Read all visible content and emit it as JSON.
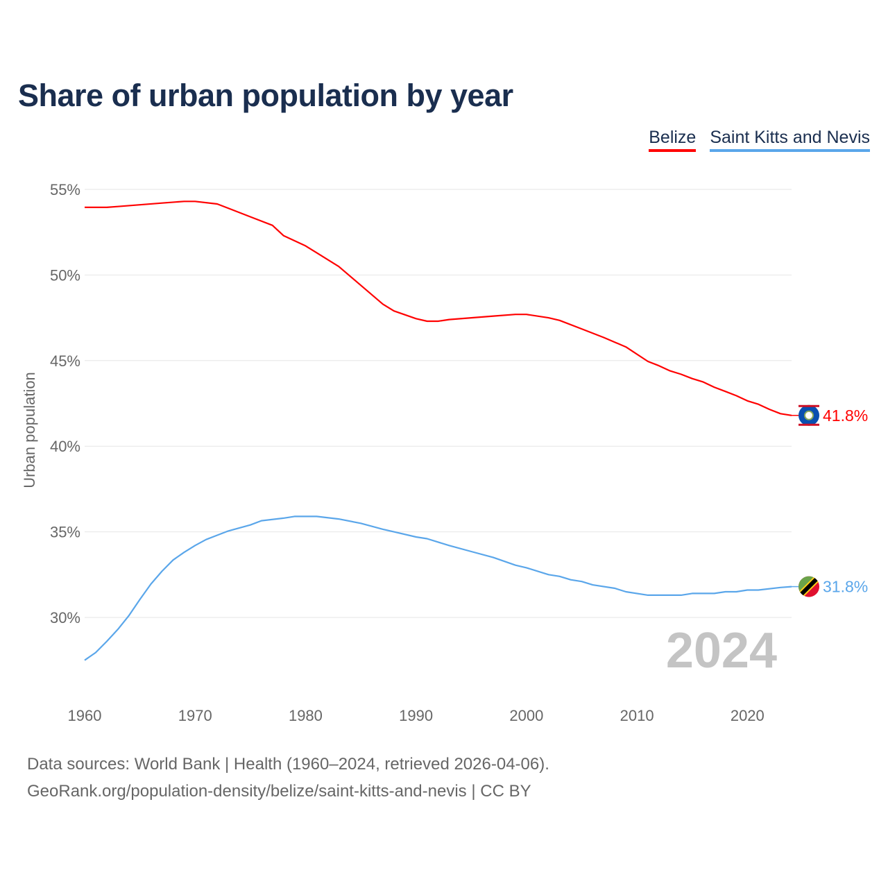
{
  "title": "Share of urban population by year",
  "footer": {
    "line1": "Data sources: World Bank | Health (1960–2024, retrieved 2026-04-06).",
    "line2": "GeoRank.org/population-density/belize/saint-kitts-and-nevis | CC BY"
  },
  "chart_data": {
    "type": "line",
    "title": "Share of urban population by year",
    "xlabel": "",
    "ylabel": "Urban population",
    "xlim": [
      1960,
      2024
    ],
    "ylim": [
      25.5,
      55
    ],
    "x_ticks": [
      "1960",
      "1970",
      "1980",
      "1990",
      "2000",
      "2010",
      "2020"
    ],
    "y_ticks": [
      "30%",
      "35%",
      "40%",
      "45%",
      "50%",
      "55%"
    ],
    "grid": true,
    "legend_position": "top-right",
    "year_label": "2024",
    "series": [
      {
        "name": "Belize",
        "color": "#ff0000",
        "end_label": "41.8%",
        "flag": "belize-flag",
        "points": [
          [
            1960,
            53.95
          ],
          [
            1962,
            53.95
          ],
          [
            1963,
            54.0
          ],
          [
            1965,
            54.1
          ],
          [
            1967,
            54.2
          ],
          [
            1969,
            54.3
          ],
          [
            1970,
            54.3
          ],
          [
            1972,
            54.15
          ],
          [
            1973,
            53.9
          ],
          [
            1975,
            53.4
          ],
          [
            1977,
            52.9
          ],
          [
            1978,
            52.3
          ],
          [
            1980,
            51.7
          ],
          [
            1981,
            51.3
          ],
          [
            1983,
            50.5
          ],
          [
            1985,
            49.4
          ],
          [
            1987,
            48.3
          ],
          [
            1988,
            47.9
          ],
          [
            1990,
            47.45
          ],
          [
            1991,
            47.3
          ],
          [
            1992,
            47.3
          ],
          [
            1993,
            47.4
          ],
          [
            1995,
            47.5
          ],
          [
            1997,
            47.6
          ],
          [
            1999,
            47.7
          ],
          [
            2000,
            47.7
          ],
          [
            2002,
            47.5
          ],
          [
            2003,
            47.35
          ],
          [
            2005,
            46.85
          ],
          [
            2007,
            46.35
          ],
          [
            2009,
            45.8
          ],
          [
            2011,
            44.95
          ],
          [
            2012,
            44.7
          ],
          [
            2013,
            44.4
          ],
          [
            2014,
            44.2
          ],
          [
            2015,
            43.95
          ],
          [
            2016,
            43.75
          ],
          [
            2017,
            43.45
          ],
          [
            2018,
            43.2
          ],
          [
            2019,
            42.95
          ],
          [
            2020,
            42.65
          ],
          [
            2021,
            42.45
          ],
          [
            2022,
            42.15
          ],
          [
            2023,
            41.9
          ],
          [
            2024,
            41.8
          ]
        ]
      },
      {
        "name": "Saint Kitts and Nevis",
        "color": "#5aa6ea",
        "end_label": "31.8%",
        "flag": "saint-kitts-and-nevis-flag",
        "points": [
          [
            1960,
            27.5
          ],
          [
            1961,
            27.95
          ],
          [
            1962,
            28.6
          ],
          [
            1963,
            29.3
          ],
          [
            1964,
            30.1
          ],
          [
            1965,
            31.05
          ],
          [
            1966,
            31.95
          ],
          [
            1967,
            32.7
          ],
          [
            1968,
            33.35
          ],
          [
            1969,
            33.8
          ],
          [
            1970,
            34.2
          ],
          [
            1971,
            34.55
          ],
          [
            1972,
            34.8
          ],
          [
            1973,
            35.05
          ],
          [
            1975,
            35.4
          ],
          [
            1976,
            35.65
          ],
          [
            1978,
            35.8
          ],
          [
            1979,
            35.9
          ],
          [
            1981,
            35.9
          ],
          [
            1983,
            35.75
          ],
          [
            1985,
            35.5
          ],
          [
            1987,
            35.15
          ],
          [
            1988,
            35.0
          ],
          [
            1990,
            34.7
          ],
          [
            1991,
            34.6
          ],
          [
            1993,
            34.2
          ],
          [
            1995,
            33.85
          ],
          [
            1997,
            33.5
          ],
          [
            1999,
            33.05
          ],
          [
            2000,
            32.9
          ],
          [
            2002,
            32.5
          ],
          [
            2003,
            32.4
          ],
          [
            2004,
            32.2
          ],
          [
            2005,
            32.1
          ],
          [
            2006,
            31.9
          ],
          [
            2008,
            31.7
          ],
          [
            2009,
            31.5
          ],
          [
            2011,
            31.3
          ],
          [
            2014,
            31.3
          ],
          [
            2015,
            31.4
          ],
          [
            2017,
            31.4
          ],
          [
            2018,
            31.5
          ],
          [
            2019,
            31.5
          ],
          [
            2020,
            31.6
          ],
          [
            2021,
            31.6
          ],
          [
            2023,
            31.75
          ],
          [
            2024,
            31.8
          ]
        ]
      }
    ]
  }
}
